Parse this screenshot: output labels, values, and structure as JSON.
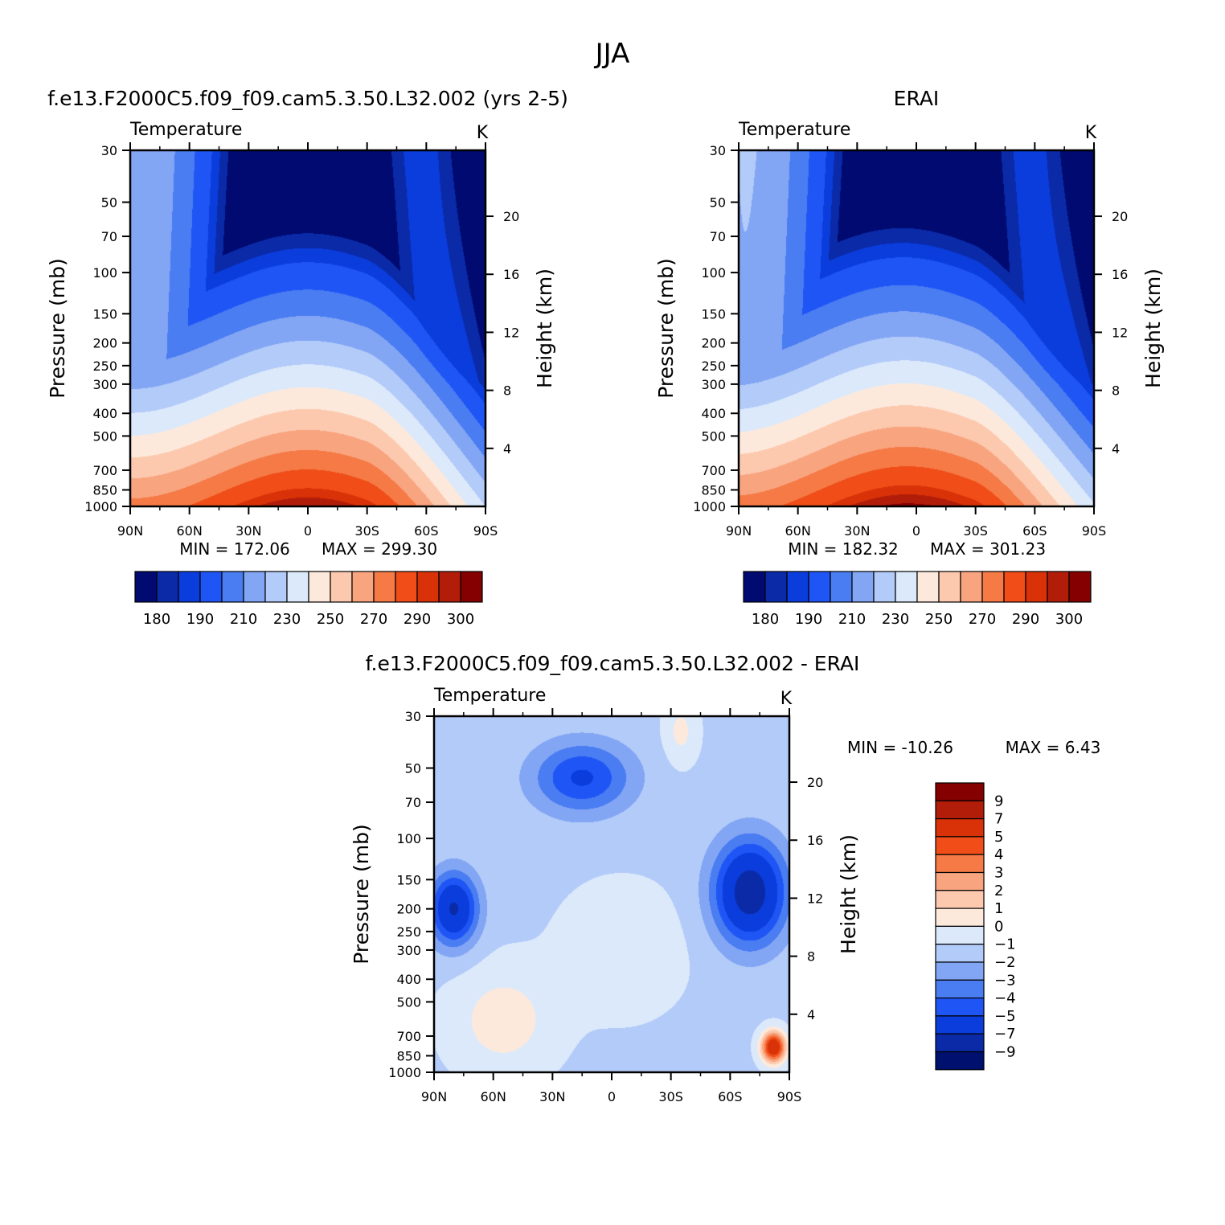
{
  "title": "JJA",
  "colors": {
    "abs_palette": [
      "#000a70",
      "#0a2aa8",
      "#0b3ddc",
      "#1f55f5",
      "#4a7cf2",
      "#82a6f4",
      "#b3cbf9",
      "#dbe9fb",
      "#fde9dc",
      "#fcc9ae",
      "#f8a47f",
      "#f57a46",
      "#f04d18",
      "#d93208",
      "#b21d0a",
      "#850000"
    ],
    "diff_palette": [
      "#00106e",
      "#0a2aa8",
      "#0b3ddc",
      "#1f55f5",
      "#4a7cf2",
      "#82a6f4",
      "#b3cbf9",
      "#dbe9fb",
      "#fde9dc",
      "#fcc9ae",
      "#f8a47f",
      "#f57a46",
      "#f04d18",
      "#d93208",
      "#b21d0a",
      "#850000"
    ]
  },
  "chart_data": [
    {
      "type": "heatmap",
      "title": "f.e13.F2000C5.f09_f09.cam5.3.50.L32.002 (yrs 2-5)",
      "field_label": "Temperature",
      "units": "K",
      "ylabel": "Pressure (mb)",
      "y2label": "Height (km)",
      "x_ticks": [
        "90N",
        "60N",
        "30N",
        "0",
        "30S",
        "60S",
        "90S"
      ],
      "x_values": [
        90,
        60,
        30,
        0,
        -30,
        -60,
        -90
      ],
      "y_ticks": [
        30,
        50,
        70,
        100,
        150,
        200,
        250,
        300,
        400,
        500,
        700,
        850,
        1000
      ],
      "y2_ticks": [
        20,
        16,
        12,
        8,
        4
      ],
      "ylim": [
        30,
        1000
      ],
      "xlim": [
        90,
        -90
      ],
      "min_text": "MIN = 172.06",
      "max_text": "MAX = 299.30",
      "min": 172.06,
      "max": 299.3,
      "colorbar_labels": [
        "180",
        "190",
        "210",
        "230",
        "250",
        "270",
        "290",
        "300"
      ],
      "contour_levels": [
        180,
        185,
        190,
        200,
        210,
        220,
        230,
        240,
        250,
        260,
        270,
        280,
        290,
        295,
        300
      ]
    },
    {
      "type": "heatmap",
      "title": "ERAI",
      "field_label": "Temperature",
      "units": "K",
      "ylabel": "Pressure (mb)",
      "y2label": "Height (km)",
      "x_ticks": [
        "90N",
        "60N",
        "30N",
        "0",
        "30S",
        "60S",
        "90S"
      ],
      "x_values": [
        90,
        60,
        30,
        0,
        -30,
        -60,
        -90
      ],
      "y_ticks": [
        30,
        50,
        70,
        100,
        150,
        200,
        250,
        300,
        400,
        500,
        700,
        850,
        1000
      ],
      "y2_ticks": [
        20,
        16,
        12,
        8,
        4
      ],
      "ylim": [
        30,
        1000
      ],
      "xlim": [
        90,
        -90
      ],
      "min_text": "MIN = 182.32",
      "max_text": "MAX = 301.23",
      "min": 182.32,
      "max": 301.23,
      "colorbar_labels": [
        "180",
        "190",
        "210",
        "230",
        "250",
        "270",
        "290",
        "300"
      ],
      "contour_levels": [
        180,
        185,
        190,
        200,
        210,
        220,
        230,
        240,
        250,
        260,
        270,
        280,
        290,
        295,
        300
      ]
    },
    {
      "type": "heatmap",
      "title": "f.e13.F2000C5.f09_f09.cam5.3.50.L32.002 - ERAI",
      "field_label": "Temperature",
      "units": "K",
      "ylabel": "Pressure (mb)",
      "y2label": "Height (km)",
      "x_ticks": [
        "90N",
        "60N",
        "30N",
        "0",
        "30S",
        "60S",
        "90S"
      ],
      "x_values": [
        90,
        60,
        30,
        0,
        -30,
        -60,
        -90
      ],
      "y_ticks": [
        30,
        50,
        70,
        100,
        150,
        200,
        250,
        300,
        400,
        500,
        700,
        850,
        1000
      ],
      "y2_ticks": [
        20,
        16,
        12,
        8,
        4
      ],
      "ylim": [
        30,
        1000
      ],
      "xlim": [
        90,
        -90
      ],
      "min_text": "MIN = -10.26",
      "max_text": "MAX = 6.43",
      "min": -10.26,
      "max": 6.43,
      "colorbar_labels": [
        "9",
        "7",
        "5",
        "4",
        "3",
        "2",
        "1",
        "0",
        "-1",
        "-2",
        "-3",
        "-4",
        "-5",
        "-7",
        "-9"
      ],
      "contour_levels": [
        -9,
        -7,
        -5,
        -4,
        -3,
        -2,
        -1,
        0,
        1,
        2,
        3,
        4,
        5,
        7,
        9
      ]
    }
  ]
}
